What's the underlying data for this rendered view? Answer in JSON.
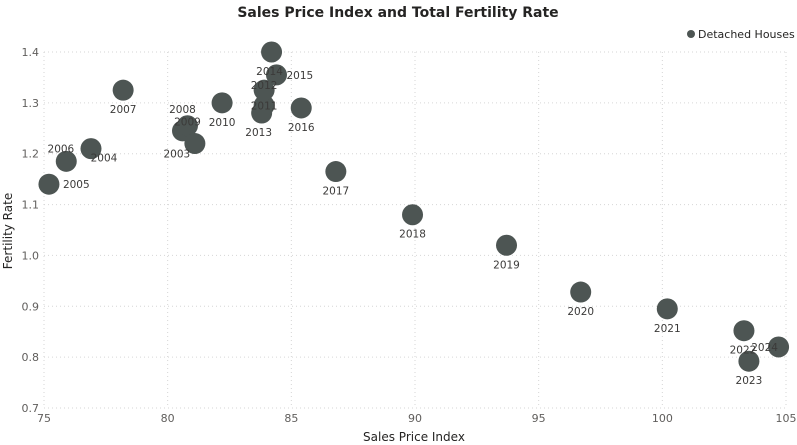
{
  "chart_data": {
    "type": "scatter",
    "title": "Sales Price Index and Total Fertility Rate",
    "xlabel": "Sales Price Index",
    "ylabel": "Fertility Rate",
    "xlim": [
      75,
      105
    ],
    "ylim": [
      0.7,
      1.4
    ],
    "x_ticks": [
      75,
      80,
      85,
      90,
      95,
      100,
      105
    ],
    "y_ticks": [
      0.7,
      0.8,
      0.9,
      1.0,
      1.1,
      1.2,
      1.3,
      1.4
    ],
    "y_tick_labels": [
      "0.7",
      "0.8",
      "0.9",
      "1.0",
      "1.1",
      "1.2",
      "1.3",
      "1.4"
    ],
    "grid": true,
    "legend_position": "top-right",
    "color": "#4d5553",
    "series": [
      {
        "name": "Detached Houses",
        "points": [
          {
            "label": "2004",
            "x": 76.9,
            "y": 1.21
          },
          {
            "label": "2005",
            "x": 75.2,
            "y": 1.14
          },
          {
            "label": "2006",
            "x": 75.9,
            "y": 1.185
          },
          {
            "label": "2007",
            "x": 78.2,
            "y": 1.325
          },
          {
            "label": "2008",
            "x": 80.6,
            "y": 1.245
          },
          {
            "label": "2009",
            "x": 80.8,
            "y": 1.255
          },
          {
            "label": "2010",
            "x": 82.2,
            "y": 1.3
          },
          {
            "label": "2011",
            "x": 83.9,
            "y": 1.295
          },
          {
            "label": "2012",
            "x": 83.9,
            "y": 1.325
          },
          {
            "label": "2013",
            "x": 83.8,
            "y": 1.28
          },
          {
            "label": "2014",
            "x": 84.2,
            "y": 1.4
          },
          {
            "label": "2015",
            "x": 84.4,
            "y": 1.355
          },
          {
            "label": "2016",
            "x": 85.4,
            "y": 1.29
          },
          {
            "label": "2017",
            "x": 86.8,
            "y": 1.165
          },
          {
            "label": "2018",
            "x": 89.9,
            "y": 1.08
          },
          {
            "label": "2019",
            "x": 93.7,
            "y": 1.02
          },
          {
            "label": "2020",
            "x": 96.7,
            "y": 0.928
          },
          {
            "label": "2021",
            "x": 100.2,
            "y": 0.895
          },
          {
            "label": "2022",
            "x": 103.3,
            "y": 0.852
          },
          {
            "label": "2023",
            "x": 103.5,
            "y": 0.792
          },
          {
            "label": "2024",
            "x": 104.7,
            "y": 0.82
          },
          {
            "label": "2003",
            "x": 81.1,
            "y": 1.22
          }
        ]
      }
    ]
  }
}
